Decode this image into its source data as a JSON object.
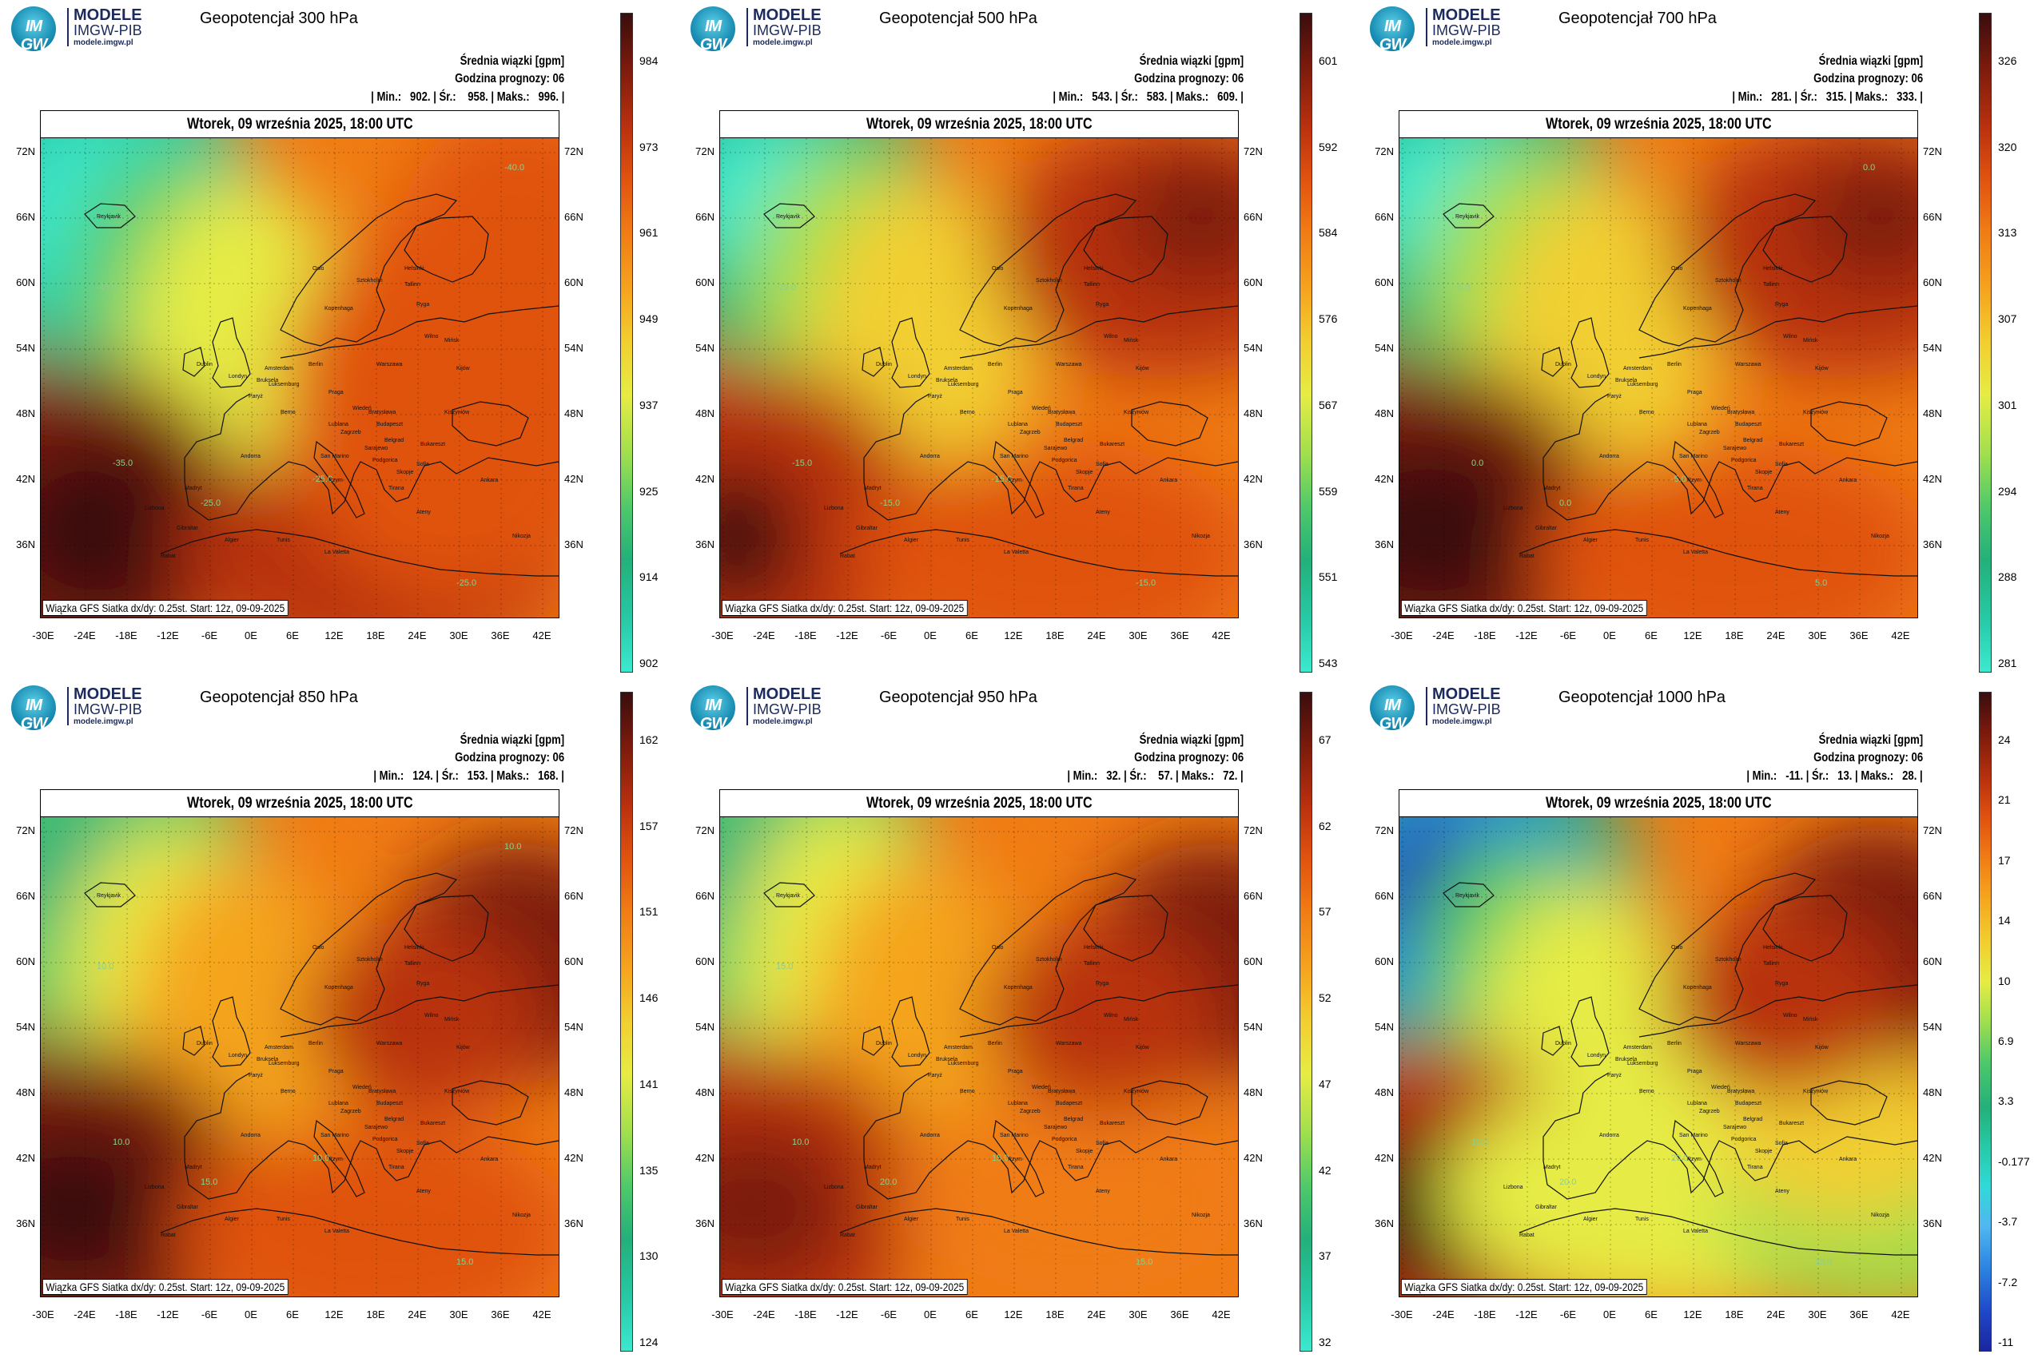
{
  "logo": {
    "name": "MODELE",
    "org": "IMGW-PIB",
    "url": "modele.imgw.pl",
    "mark": "IM GW"
  },
  "common": {
    "legend_title": "Średnia wiązki [gpm]",
    "forecast_hour": "Godzina prognozy: 06",
    "date": "Wtorek, 09 września 2025, 18:00 UTC",
    "footer": "Wiązka GFS Siatka dx/dy: 0.25st. Start: 12z, 09-09-2025",
    "lat_labels": [
      "72N",
      "66N",
      "60N",
      "54N",
      "48N",
      "42N",
      "36N"
    ],
    "lon_labels": [
      "-30E",
      "-24E",
      "-18E",
      "-12E",
      "-6E",
      "0E",
      "6E",
      "12E",
      "18E",
      "24E",
      "30E",
      "36E",
      "42E"
    ],
    "cities": [
      "Reykjavik",
      "Oslo",
      "Sztokholm",
      "Helsinki",
      "Tallinn",
      "Ryga",
      "Wilno",
      "Mińsk",
      "Kopenhaga",
      "Dublin",
      "Londyn",
      "Amsterdam",
      "Berlin",
      "Bruksela",
      "Luksemburg",
      "Paryż",
      "Warszawa",
      "Praga",
      "Wiedeń",
      "Bratysława",
      "Budapeszt",
      "Kiszyniów",
      "Berno",
      "Zagrzeb",
      "Belgrad",
      "Bukareszt",
      "Andorra",
      "San Marino",
      "Rzym",
      "Sofia",
      "Skopje",
      "Madryt",
      "Lizbona",
      "Tirana",
      "Ateny",
      "Ankara",
      "Gibraltar",
      "Algier",
      "Tunis",
      "La Valetta",
      "Rabat",
      "Nikozja",
      "Kijów",
      "Lublana",
      "Sarajewo",
      "Podgorica"
    ]
  },
  "panels": [
    {
      "title": "Geopotencjał 300 hPa",
      "stats": "| Min.:   902. | Śr.:    958. | Maks.:   996. |",
      "colorbar": [
        "984",
        "973",
        "961",
        "949",
        "937",
        "925",
        "914",
        "902"
      ],
      "contours": [
        "-45.0",
        "-35.0",
        "-25.0",
        "-25.0",
        "-25.0",
        "-40.0"
      ]
    },
    {
      "title": "Geopotencjał 500 hPa",
      "stats": "| Min.:   543. | Śr.:   583. | Maks.:   609. |",
      "colorbar": [
        "601",
        "592",
        "584",
        "576",
        "567",
        "559",
        "551",
        "543"
      ],
      "contours": [
        "-29.0",
        "-15.0",
        "-15.0",
        "-15.0",
        "-15.0"
      ]
    },
    {
      "title": "Geopotencjał 700 hPa",
      "stats": "| Min.:   281. | Śr.:   315. | Maks.:   333. |",
      "colorbar": [
        "326",
        "320",
        "313",
        "307",
        "301",
        "294",
        "288",
        "281"
      ],
      "contours": [
        "-5.0",
        "0.0",
        "-5.0",
        "0.0",
        "5.0",
        "0.0"
      ]
    },
    {
      "title": "Geopotencjał 850 hPa",
      "stats": "| Min.:   124. | Śr.:   153. | Maks.:   168. |",
      "colorbar": [
        "162",
        "157",
        "151",
        "146",
        "141",
        "135",
        "130",
        "124"
      ],
      "contours": [
        "10.0",
        "10.0",
        "10.0",
        "15.0",
        "15.0",
        "10.0"
      ]
    },
    {
      "title": "Geopotencjał 950 hPa",
      "stats": "| Min.:   32. | Śr.:    57. | Maks.:   72. |",
      "colorbar": [
        "67",
        "62",
        "57",
        "52",
        "47",
        "42",
        "37",
        "32"
      ],
      "contours": [
        "15.0",
        "10.0",
        "15.0",
        "20.0",
        "15.0"
      ]
    },
    {
      "title": "Geopotencjał 1000 hPa",
      "stats": "| Min.:   -11. | Śr.:   13. | Maks.:   28. |",
      "colorbar": [
        "24",
        "21",
        "17",
        "14",
        "10",
        "6.9",
        "3.3",
        "-0.177",
        "-3.7",
        "-7.2",
        "-11"
      ],
      "contours": [
        "5.0",
        "10.0",
        "20.0",
        "20.0",
        "15.0"
      ]
    }
  ]
}
